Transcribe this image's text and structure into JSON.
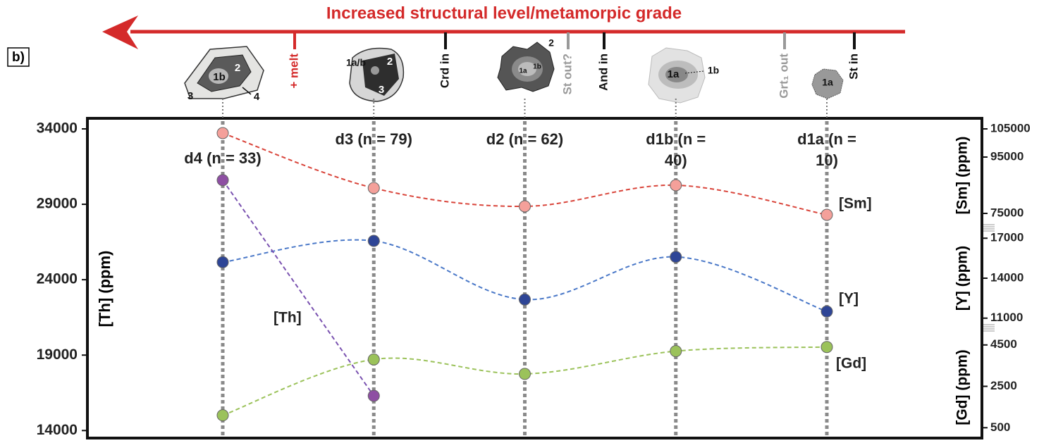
{
  "chart_data": {
    "type": "line",
    "title": "Increased structural level/metamorpic grade",
    "panel_label": "b)",
    "categories": [
      "d4 (n = 33)",
      "d3 (n = 79)",
      "d2 (n = 62)",
      "d1b (n = 40)",
      "d1a (n = 10)"
    ],
    "events": [
      {
        "label": "+ melt",
        "color": "#d42a2a"
      },
      {
        "label": "Crd in",
        "color": "#111111"
      },
      {
        "label": "St out?",
        "color": "#999999"
      },
      {
        "label": "And in",
        "color": "#111111"
      },
      {
        "label": "Grt₁ out",
        "color": "#999999"
      },
      {
        "label": "St in",
        "color": "#111111"
      }
    ],
    "grain_labels": [
      [
        "1b",
        "2",
        "3",
        "4"
      ],
      [
        "1a/b",
        "2",
        "3"
      ],
      [
        "2",
        "1a",
        "1b"
      ],
      [
        "1a",
        "1b"
      ],
      [
        "1a"
      ]
    ],
    "y_label": "[Th] (ppm)",
    "ylim": [
      13500,
      34700
    ],
    "yticks": [
      14000,
      19000,
      24000,
      29000,
      34000
    ],
    "right_axes": [
      {
        "label": "[Sm] (ppm)",
        "lim": [
          70000,
          107000
        ],
        "ticks": [
          105000,
          95000,
          75000
        ]
      },
      {
        "label": "[Y] (ppm)",
        "lim": [
          10300,
          17700
        ],
        "ticks": [
          17000,
          14000,
          11000
        ]
      },
      {
        "label": "[Gd] (ppm)",
        "lim": [
          0,
          4900
        ],
        "ticks": [
          4500,
          2500,
          500
        ]
      }
    ],
    "series": [
      {
        "name": "[Sm]",
        "axis": "right_axes.0",
        "color": "#f4a09a",
        "line_color": "#d9443a",
        "smooth": true,
        "values": [
          103500,
          84000,
          77500,
          85000,
          74500
        ]
      },
      {
        "name": "[Y]",
        "axis": "right_axes.1",
        "color": "#2e4596",
        "line_color": "#4a78c8",
        "smooth": true,
        "values": [
          15200,
          16800,
          12400,
          15600,
          11500
        ]
      },
      {
        "name": "[Gd]",
        "axis": "right_axes.2",
        "color": "#9bc25a",
        "line_color": "#9bc25a",
        "smooth": true,
        "values": [
          1100,
          3800,
          3100,
          4200,
          4400
        ]
      },
      {
        "name": "[Th]",
        "axis": "y",
        "color": "#8e4fa3",
        "line_color": "#7a52b0",
        "smooth": false,
        "values": [
          30600,
          16300,
          null,
          null,
          null
        ]
      }
    ]
  }
}
